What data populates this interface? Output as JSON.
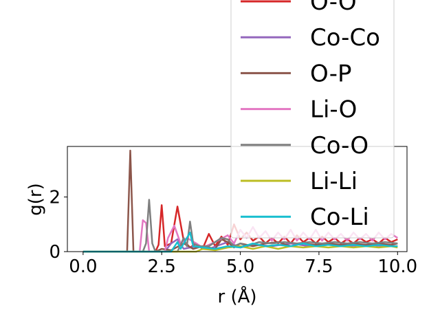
{
  "chart_data": {
    "type": "line",
    "title": "",
    "xlabel": "r (Å)",
    "ylabel": "g(r)",
    "xlim": [
      -0.5,
      10.3
    ],
    "ylim": [
      0,
      3.85
    ],
    "xticks": [
      "0.0",
      "2.5",
      "5.0",
      "7.5",
      "10.0"
    ],
    "xtick_values": [
      0,
      2.5,
      5,
      7.5,
      10
    ],
    "yticks": [
      "0",
      "2"
    ],
    "ytick_values": [
      0,
      2
    ],
    "grid": false,
    "legend_position": "top-right",
    "series": [
      {
        "name": "O-O",
        "color": "#d62728",
        "points": [
          [
            0,
            0
          ],
          [
            2.3,
            0
          ],
          [
            2.4,
            0.25
          ],
          [
            2.5,
            1.7
          ],
          [
            2.6,
            0.2
          ],
          [
            2.8,
            0.3
          ],
          [
            3.0,
            1.65
          ],
          [
            3.2,
            0.4
          ],
          [
            3.4,
            0.15
          ],
          [
            3.6,
            0.3
          ],
          [
            3.8,
            0.1
          ],
          [
            4.0,
            0.65
          ],
          [
            4.2,
            0.2
          ],
          [
            4.4,
            0.55
          ],
          [
            4.6,
            0.25
          ],
          [
            4.8,
            1.0
          ],
          [
            5.0,
            0.45
          ],
          [
            5.2,
            0.7
          ],
          [
            5.4,
            0.4
          ],
          [
            5.6,
            0.55
          ],
          [
            5.8,
            0.3
          ],
          [
            6.0,
            0.5
          ],
          [
            6.2,
            0.3
          ],
          [
            6.4,
            0.55
          ],
          [
            6.6,
            0.3
          ],
          [
            6.8,
            0.6
          ],
          [
            7.0,
            0.35
          ],
          [
            7.2,
            0.5
          ],
          [
            7.4,
            0.3
          ],
          [
            7.6,
            0.55
          ],
          [
            7.8,
            0.35
          ],
          [
            8.0,
            0.5
          ],
          [
            8.2,
            0.3
          ],
          [
            8.4,
            0.45
          ],
          [
            8.6,
            0.3
          ],
          [
            8.8,
            0.5
          ],
          [
            9.0,
            0.35
          ],
          [
            9.2,
            0.45
          ],
          [
            9.4,
            0.3
          ],
          [
            9.6,
            0.5
          ],
          [
            9.8,
            0.35
          ],
          [
            10.0,
            0.45
          ]
        ]
      },
      {
        "name": "Co-Co",
        "color": "#9467bd",
        "points": [
          [
            0,
            0
          ],
          [
            2.6,
            0
          ],
          [
            2.8,
            0.3
          ],
          [
            3.0,
            0.45
          ],
          [
            3.2,
            0.1
          ],
          [
            3.6,
            0.2
          ],
          [
            4.0,
            0.1
          ],
          [
            4.6,
            0.35
          ],
          [
            5.0,
            0.15
          ],
          [
            5.4,
            0.25
          ],
          [
            6.0,
            0.2
          ],
          [
            6.6,
            0.3
          ],
          [
            7.2,
            0.2
          ],
          [
            7.8,
            0.25
          ],
          [
            8.4,
            0.2
          ],
          [
            9.0,
            0.25
          ],
          [
            9.6,
            0.2
          ],
          [
            10.0,
            0.2
          ]
        ]
      },
      {
        "name": "O-P",
        "color": "#8c564b",
        "points": [
          [
            0,
            0
          ],
          [
            1.4,
            0
          ],
          [
            1.5,
            3.7
          ],
          [
            1.6,
            0
          ],
          [
            2.3,
            0
          ],
          [
            2.5,
            0.1
          ],
          [
            2.8,
            0.05
          ],
          [
            3.2,
            0.3
          ],
          [
            3.5,
            0.1
          ],
          [
            3.8,
            0.2
          ],
          [
            4.2,
            0.1
          ],
          [
            4.4,
            0.45
          ],
          [
            4.6,
            0.35
          ],
          [
            4.8,
            0.15
          ],
          [
            5.0,
            0.3
          ],
          [
            5.4,
            0.2
          ],
          [
            5.8,
            0.3
          ],
          [
            6.2,
            0.35
          ],
          [
            6.6,
            0.2
          ],
          [
            7.0,
            0.3
          ],
          [
            7.4,
            0.25
          ],
          [
            7.8,
            0.3
          ],
          [
            8.2,
            0.25
          ],
          [
            8.6,
            0.3
          ],
          [
            9.0,
            0.25
          ],
          [
            9.4,
            0.3
          ],
          [
            9.8,
            0.25
          ],
          [
            10.0,
            0.3
          ]
        ]
      },
      {
        "name": "Li-O",
        "color": "#e377c2",
        "points": [
          [
            0,
            0
          ],
          [
            1.8,
            0
          ],
          [
            1.9,
            1.15
          ],
          [
            2.0,
            1.05
          ],
          [
            2.1,
            0
          ],
          [
            2.6,
            0
          ],
          [
            2.7,
            0.5
          ],
          [
            2.9,
            0.95
          ],
          [
            3.1,
            0.3
          ],
          [
            3.3,
            0.5
          ],
          [
            3.6,
            0.3
          ],
          [
            3.8,
            0.15
          ],
          [
            4.2,
            0.35
          ],
          [
            4.6,
            0.6
          ],
          [
            4.8,
            0.3
          ],
          [
            5.0,
            0.8
          ],
          [
            5.2,
            0.5
          ],
          [
            5.4,
            0.9
          ],
          [
            5.6,
            0.5
          ],
          [
            5.8,
            0.75
          ],
          [
            6.0,
            0.4
          ],
          [
            6.2,
            0.7
          ],
          [
            6.4,
            0.45
          ],
          [
            6.6,
            0.8
          ],
          [
            6.8,
            0.4
          ],
          [
            7.0,
            0.7
          ],
          [
            7.2,
            0.45
          ],
          [
            7.4,
            0.8
          ],
          [
            7.6,
            0.4
          ],
          [
            7.8,
            0.7
          ],
          [
            8.0,
            0.45
          ],
          [
            8.2,
            0.65
          ],
          [
            8.4,
            0.4
          ],
          [
            8.6,
            0.7
          ],
          [
            8.8,
            0.45
          ],
          [
            9.0,
            0.65
          ],
          [
            9.2,
            0.4
          ],
          [
            9.4,
            0.7
          ],
          [
            9.6,
            0.45
          ],
          [
            9.8,
            0.65
          ],
          [
            10.0,
            0.5
          ]
        ]
      },
      {
        "name": "Co-O",
        "color": "#7f7f7f",
        "points": [
          [
            0,
            0
          ],
          [
            1.9,
            0
          ],
          [
            2.0,
            0.3
          ],
          [
            2.1,
            1.9
          ],
          [
            2.2,
            0.3
          ],
          [
            2.3,
            0
          ],
          [
            3.0,
            0
          ],
          [
            3.2,
            0.5
          ],
          [
            3.3,
            0.2
          ],
          [
            3.4,
            1.1
          ],
          [
            3.5,
            0.3
          ],
          [
            3.7,
            0.2
          ],
          [
            4.0,
            0.2
          ],
          [
            4.4,
            0.5
          ],
          [
            4.6,
            0.45
          ],
          [
            4.8,
            0.2
          ],
          [
            5.0,
            0.3
          ],
          [
            5.2,
            0.2
          ],
          [
            5.6,
            0.35
          ],
          [
            6.0,
            0.3
          ],
          [
            6.4,
            0.35
          ],
          [
            6.8,
            0.3
          ],
          [
            7.2,
            0.35
          ],
          [
            7.6,
            0.3
          ],
          [
            8.0,
            0.35
          ],
          [
            8.4,
            0.3
          ],
          [
            8.8,
            0.35
          ],
          [
            9.2,
            0.3
          ],
          [
            9.6,
            0.35
          ],
          [
            10.0,
            0.3
          ]
        ]
      },
      {
        "name": "Li-Li",
        "color": "#bcbd22",
        "points": [
          [
            0,
            0
          ],
          [
            3.6,
            0
          ],
          [
            3.8,
            0.1
          ],
          [
            4.2,
            0.05
          ],
          [
            4.6,
            0.15
          ],
          [
            5.0,
            0.2
          ],
          [
            5.4,
            0.1
          ],
          [
            5.8,
            0.2
          ],
          [
            6.2,
            0.1
          ],
          [
            6.6,
            0.2
          ],
          [
            7.0,
            0.15
          ],
          [
            7.4,
            0.2
          ],
          [
            7.8,
            0.15
          ],
          [
            8.2,
            0.2
          ],
          [
            8.6,
            0.15
          ],
          [
            9.0,
            0.2
          ],
          [
            9.4,
            0.15
          ],
          [
            9.8,
            0.2
          ],
          [
            10.0,
            0.15
          ]
        ]
      },
      {
        "name": "Co-Li",
        "color": "#17becf",
        "points": [
          [
            0,
            0
          ],
          [
            2.8,
            0
          ],
          [
            3.0,
            0.35
          ],
          [
            3.1,
            0.1
          ],
          [
            3.3,
            0.5
          ],
          [
            3.4,
            0.7
          ],
          [
            3.5,
            0.2
          ],
          [
            3.8,
            0.15
          ],
          [
            4.2,
            0.1
          ],
          [
            4.6,
            0.2
          ],
          [
            5.0,
            0.15
          ],
          [
            5.4,
            0.3
          ],
          [
            5.8,
            0.2
          ],
          [
            6.2,
            0.25
          ],
          [
            6.6,
            0.2
          ],
          [
            7.0,
            0.3
          ],
          [
            7.4,
            0.2
          ],
          [
            7.8,
            0.25
          ],
          [
            8.2,
            0.2
          ],
          [
            8.6,
            0.25
          ],
          [
            9.0,
            0.2
          ],
          [
            9.4,
            0.25
          ],
          [
            9.8,
            0.2
          ],
          [
            10.0,
            0.2
          ]
        ]
      }
    ]
  }
}
